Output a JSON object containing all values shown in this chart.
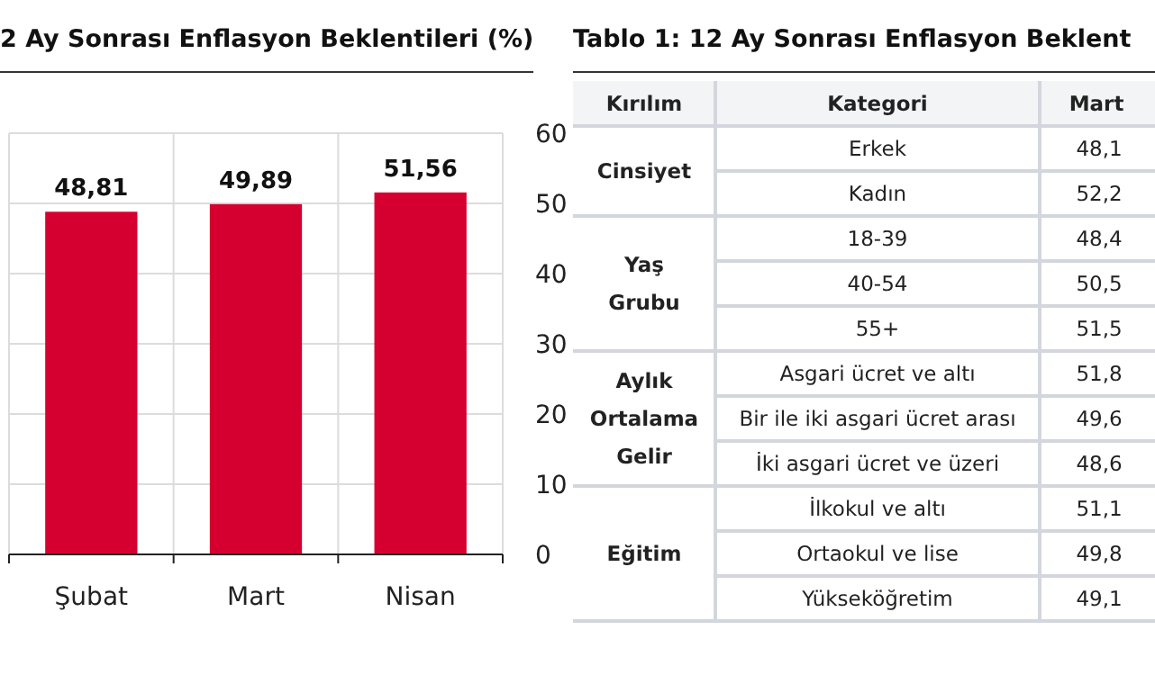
{
  "chart_data": [
    {
      "type": "bar",
      "title": "2 Ay Sonrası Enflasyon Beklentileri (%)",
      "categories": [
        "Şubat",
        "Mart",
        "Nisan"
      ],
      "values": [
        48.81,
        49.89,
        51.56
      ],
      "value_labels": [
        "48,81",
        "49,89",
        "51,56"
      ],
      "color": "#d5002f",
      "ylim": [
        0,
        60
      ],
      "yticks": [
        0,
        10,
        20,
        30,
        40,
        50,
        60
      ],
      "grid": true
    },
    {
      "type": "other",
      "title": "Tablo 1: 12 Ay Sonrası Enflasyon Beklent",
      "categories": [
        "Kırılım",
        "Kategori",
        "Mart"
      ],
      "y_categories": [
        "Erkek",
        "Kadın",
        "18-39",
        "40-54",
        "55+",
        "Asgari ücret ve altı",
        "Bir ile iki asgari ücret arası",
        "İki asgari ücret ve üzeri",
        "İlkokul ve altı",
        "Ortaokul ve lise",
        "Yükseköğretim"
      ],
      "y2_categories": [
        "Cinsiyet",
        null,
        "Yaş Grubu",
        null,
        null,
        "Aylık Ortalama Gelir",
        null,
        null,
        "Eğitim",
        null,
        null
      ],
      "cell_labels": [
        [
          "48,1"
        ],
        [
          "52,2"
        ],
        [
          "48,4"
        ],
        [
          "50,5"
        ],
        [
          "51,5"
        ],
        [
          "51,8"
        ],
        [
          "49,6"
        ],
        [
          "48,6"
        ],
        [
          "51,1"
        ],
        [
          "49,8"
        ],
        [
          "49,1"
        ]
      ]
    }
  ]
}
